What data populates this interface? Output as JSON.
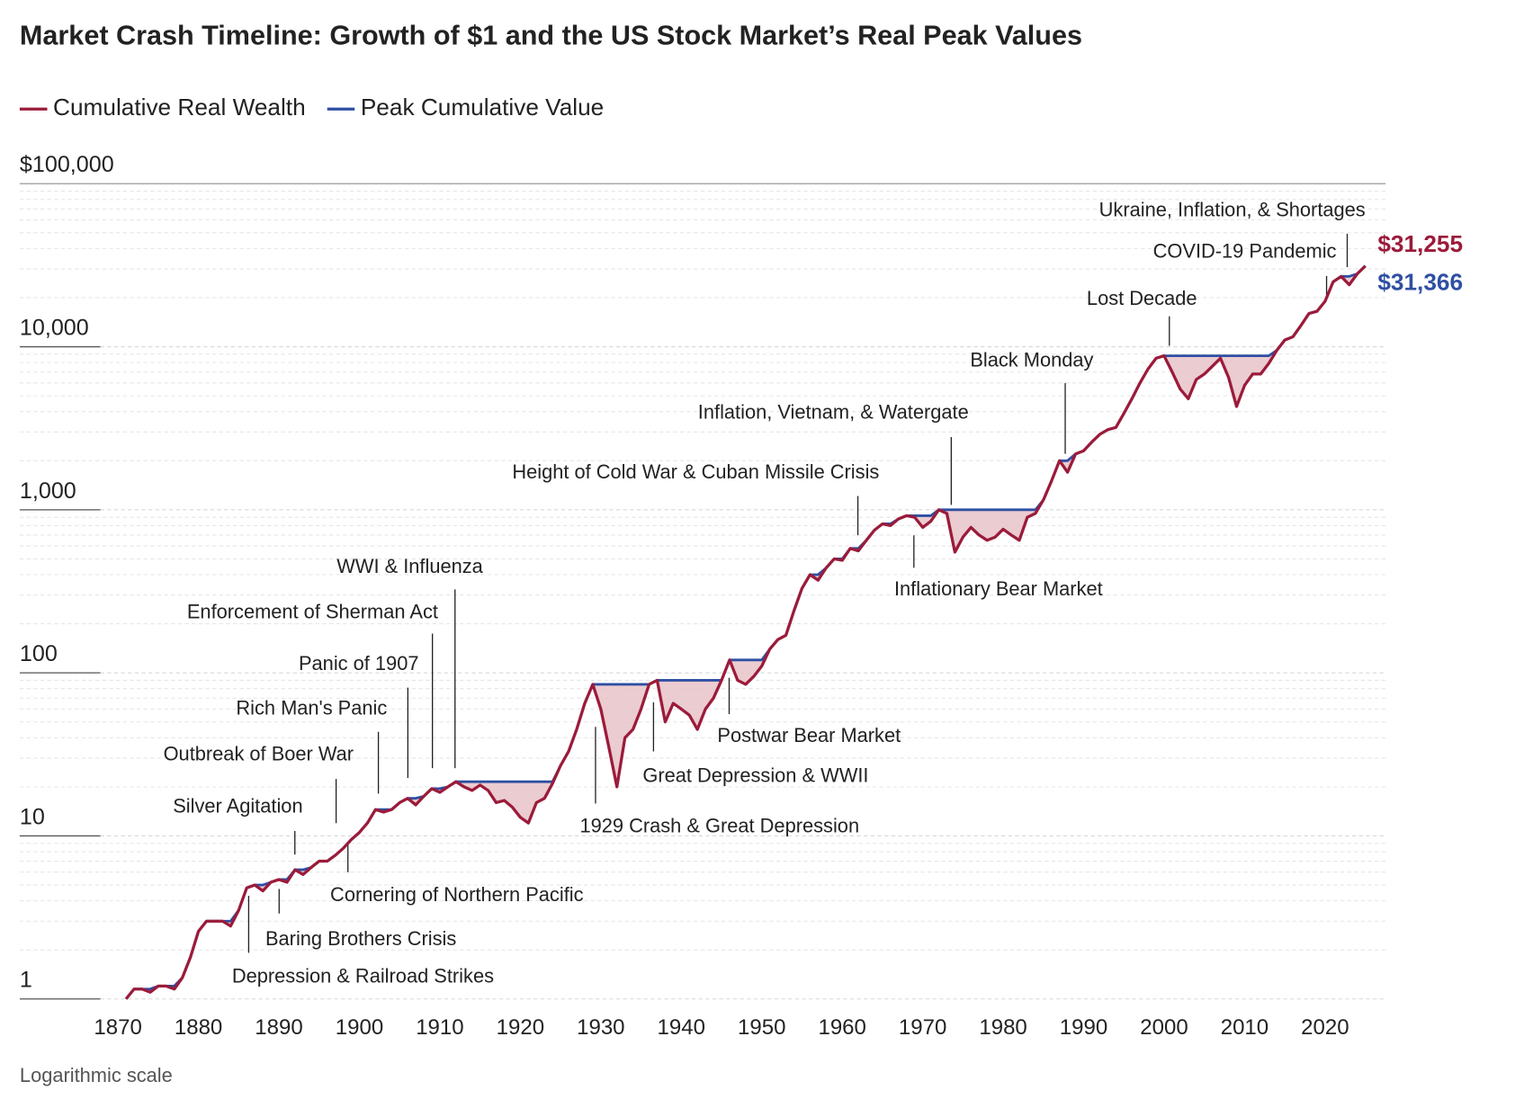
{
  "chart_data": {
    "type": "line",
    "title": "Market Crash Timeline: Growth of $1 and the US Stock Market’s Real Peak Values",
    "footnote": "Logarithmic scale",
    "log_scale": true,
    "legend": "top-left",
    "x": [
      1871,
      1872,
      1873,
      1874,
      1875,
      1876,
      1877,
      1878,
      1879,
      1880,
      1881,
      1882,
      1883,
      1884,
      1885,
      1886,
      1887,
      1888,
      1889,
      1890,
      1891,
      1892,
      1893,
      1894,
      1895,
      1896,
      1897,
      1898,
      1899,
      1900,
      1901,
      1902,
      1903,
      1904,
      1905,
      1906,
      1907,
      1908,
      1909,
      1910,
      1911,
      1912,
      1913,
      1914,
      1915,
      1916,
      1917,
      1918,
      1919,
      1920,
      1921,
      1922,
      1923,
      1924,
      1925,
      1926,
      1927,
      1928,
      1929,
      1930,
      1931,
      1932,
      1933,
      1934,
      1935,
      1936,
      1937,
      1938,
      1939,
      1940,
      1941,
      1942,
      1943,
      1944,
      1945,
      1946,
      1947,
      1948,
      1949,
      1950,
      1951,
      1952,
      1953,
      1954,
      1955,
      1956,
      1957,
      1958,
      1959,
      1960,
      1961,
      1962,
      1963,
      1964,
      1965,
      1966,
      1967,
      1968,
      1969,
      1970,
      1971,
      1972,
      1973,
      1974,
      1975,
      1976,
      1977,
      1978,
      1979,
      1980,
      1981,
      1982,
      1983,
      1984,
      1985,
      1986,
      1987,
      1988,
      1989,
      1990,
      1991,
      1992,
      1993,
      1994,
      1995,
      1996,
      1997,
      1998,
      1999,
      2000,
      2001,
      2002,
      2003,
      2004,
      2005,
      2006,
      2007,
      2008,
      2009,
      2010,
      2011,
      2012,
      2013,
      2014,
      2015,
      2016,
      2017,
      2018,
      2019,
      2020,
      2021,
      2022,
      2023,
      2024,
      2025
    ],
    "series": [
      {
        "name": "Cumulative Real Wealth",
        "color": "#9b1b3a",
        "values": [
          1.0,
          1.15,
          1.15,
          1.1,
          1.2,
          1.2,
          1.15,
          1.35,
          1.8,
          2.6,
          3.0,
          3.0,
          3.0,
          2.8,
          3.5,
          4.8,
          5.0,
          4.6,
          5.2,
          5.4,
          5.2,
          6.2,
          5.8,
          6.4,
          7.0,
          7.0,
          7.6,
          8.4,
          9.5,
          10.5,
          12,
          14.5,
          14,
          14.5,
          16,
          17,
          15.5,
          17.5,
          19.5,
          18.5,
          20,
          21.5,
          20,
          19,
          20.5,
          19,
          16,
          16.5,
          15,
          13,
          12,
          16,
          17,
          21,
          27,
          33,
          45,
          65,
          85,
          60,
          35,
          20,
          40,
          45,
          60,
          85,
          90,
          50,
          65,
          60,
          55,
          45,
          60,
          70,
          90,
          120,
          90,
          85,
          95,
          110,
          140,
          160,
          170,
          240,
          330,
          400,
          370,
          440,
          500,
          490,
          580,
          560,
          650,
          750,
          820,
          800,
          880,
          920,
          900,
          780,
          850,
          1000,
          950,
          550,
          680,
          780,
          700,
          650,
          680,
          760,
          700,
          650,
          900,
          950,
          1150,
          1500,
          2000,
          1700,
          2200,
          2300,
          2600,
          2900,
          3100,
          3200,
          3900,
          4800,
          6000,
          7300,
          8500,
          8800,
          7000,
          5500,
          4800,
          6300,
          6800,
          7600,
          8500,
          6500,
          4300,
          5800,
          6800,
          6800,
          7900,
          9500,
          11000,
          11500,
          13500,
          16000,
          16500,
          19000,
          25000,
          27000,
          24000,
          28000,
          31255
        ],
        "value_labels": [
          null,
          null,
          null,
          null,
          null,
          null,
          null,
          null,
          null,
          null,
          null,
          null,
          null,
          null,
          null,
          null,
          null,
          null,
          null,
          null,
          null,
          null,
          null,
          null,
          null,
          null,
          null,
          null,
          null,
          null,
          null,
          null,
          null,
          null,
          null,
          null,
          null,
          null,
          null,
          null,
          null,
          null,
          null,
          null,
          null,
          null,
          null,
          null,
          null,
          null,
          null,
          null,
          null,
          null,
          null,
          null,
          null,
          null,
          null,
          null,
          null,
          null,
          null,
          null,
          null,
          null,
          null,
          null,
          null,
          null,
          null,
          null,
          null,
          null,
          null,
          null,
          null,
          null,
          null,
          null,
          null,
          null,
          null,
          null,
          null,
          null,
          null,
          null,
          null,
          null,
          null,
          null,
          null,
          null,
          null,
          null,
          null,
          null,
          null,
          null,
          null,
          null,
          null,
          null,
          null,
          null,
          null,
          null,
          null,
          null,
          null,
          null,
          null,
          null,
          null,
          null,
          null,
          null,
          null,
          null,
          null,
          null,
          null,
          null,
          null,
          null,
          null,
          null,
          null,
          null,
          null,
          null,
          null,
          null,
          null,
          null,
          null,
          null,
          null,
          null,
          null,
          null,
          null,
          null,
          null,
          null,
          null,
          null,
          null,
          null,
          null,
          null,
          null,
          null,
          "$31,255"
        ]
      },
      {
        "name": "Peak Cumulative Value",
        "color": "#2e4fa3",
        "values": [
          1.0,
          1.15,
          1.15,
          1.15,
          1.2,
          1.2,
          1.2,
          1.35,
          1.8,
          2.6,
          3.0,
          3.0,
          3.0,
          3.0,
          3.5,
          4.8,
          5.0,
          5.0,
          5.2,
          5.4,
          5.4,
          6.2,
          6.2,
          6.4,
          7.0,
          7.0,
          7.6,
          8.4,
          9.5,
          10.5,
          12,
          14.5,
          14.5,
          14.5,
          16,
          17,
          17,
          17.5,
          19.5,
          19.5,
          20,
          21.5,
          21.5,
          21.5,
          21.5,
          21.5,
          21.5,
          21.5,
          21.5,
          21.5,
          21.5,
          21.5,
          21.5,
          21.5,
          27,
          33,
          45,
          65,
          85,
          85,
          85,
          85,
          85,
          85,
          85,
          85,
          90,
          90,
          90,
          90,
          90,
          90,
          90,
          90,
          90,
          120,
          120,
          120,
          120,
          120,
          140,
          160,
          170,
          240,
          330,
          400,
          400,
          440,
          500,
          500,
          580,
          580,
          650,
          750,
          820,
          820,
          880,
          920,
          920,
          920,
          920,
          1000,
          1000,
          1000,
          1000,
          1000,
          1000,
          1000,
          1000,
          1000,
          1000,
          1000,
          1000,
          1000,
          1150,
          1500,
          2000,
          2000,
          2200,
          2300,
          2600,
          2900,
          3100,
          3200,
          3900,
          4800,
          6000,
          7300,
          8500,
          8800,
          8800,
          8800,
          8800,
          8800,
          8800,
          8800,
          8800,
          8800,
          8800,
          8800,
          8800,
          8800,
          8800,
          9500,
          11000,
          11500,
          13500,
          16000,
          16500,
          19000,
          25000,
          27000,
          27000,
          28000,
          31366
        ],
        "value_labels": [
          null,
          null,
          null,
          null,
          null,
          null,
          null,
          null,
          null,
          null,
          null,
          null,
          null,
          null,
          null,
          null,
          null,
          null,
          null,
          null,
          null,
          null,
          null,
          null,
          null,
          null,
          null,
          null,
          null,
          null,
          null,
          null,
          null,
          null,
          null,
          null,
          null,
          null,
          null,
          null,
          null,
          null,
          null,
          null,
          null,
          null,
          null,
          null,
          null,
          null,
          null,
          null,
          null,
          null,
          null,
          null,
          null,
          null,
          null,
          null,
          null,
          null,
          null,
          null,
          null,
          null,
          null,
          null,
          null,
          null,
          null,
          null,
          null,
          null,
          null,
          null,
          null,
          null,
          null,
          null,
          null,
          null,
          null,
          null,
          null,
          null,
          null,
          null,
          null,
          null,
          null,
          null,
          null,
          null,
          null,
          null,
          null,
          null,
          null,
          null,
          null,
          null,
          null,
          null,
          null,
          null,
          null,
          null,
          null,
          null,
          null,
          null,
          null,
          null,
          null,
          null,
          null,
          null,
          null,
          null,
          null,
          null,
          null,
          null,
          null,
          null,
          null,
          null,
          null,
          null,
          null,
          null,
          null,
          null,
          null,
          null,
          null,
          null,
          null,
          null,
          null,
          null,
          null,
          null,
          null,
          null,
          null,
          null,
          null,
          null,
          null,
          null,
          null,
          null,
          "$31,366"
        ]
      }
    ],
    "drawdown_fill": "#e7c3c8",
    "xlim": [
      1868,
      2027
    ],
    "xticks": [
      1870,
      1880,
      1890,
      1900,
      1910,
      1920,
      1930,
      1940,
      1950,
      1960,
      1970,
      1980,
      1990,
      2000,
      2010,
      2020
    ],
    "ylim": [
      1,
      100000
    ],
    "yticks": [
      1,
      10,
      100,
      {
        "value": 1000,
        "label": "1,000"
      },
      {
        "value": 10000,
        "label": "10,000"
      },
      {
        "value": 100000,
        "label": "$100,000"
      }
    ],
    "minor_yticks": [
      2,
      3,
      4,
      5,
      6,
      7,
      8,
      9,
      20,
      30,
      40,
      50,
      60,
      70,
      80,
      90,
      200,
      300,
      400,
      500,
      600,
      700,
      800,
      900,
      2000,
      3000,
      4000,
      5000,
      6000,
      7000,
      8000,
      9000,
      20000,
      30000,
      40000,
      50000,
      60000,
      70000,
      80000,
      90000
    ],
    "grid": true,
    "annotations": [
      "Ukraine, Inflation, & Shortages",
      "COVID-19 Pandemic",
      "Lost Decade",
      "Black Monday",
      "Inflation, Vietnam, & Watergate",
      "Height of Cold War & Cuban Missile Crisis",
      "Inflationary Bear Market",
      "Postwar Bear Market",
      "Great Depression & WWII",
      "1929 Crash & Great Depression",
      "WWI & Influenza",
      "Enforcement of Sherman Act",
      "Panic of 1907",
      "Rich Man's Panic",
      "Outbreak of Boer War",
      "Silver Agitation",
      "Cornering of Northern Pacific",
      "Baring Brothers Crisis",
      "Depression & Railroad Strikes"
    ]
  }
}
